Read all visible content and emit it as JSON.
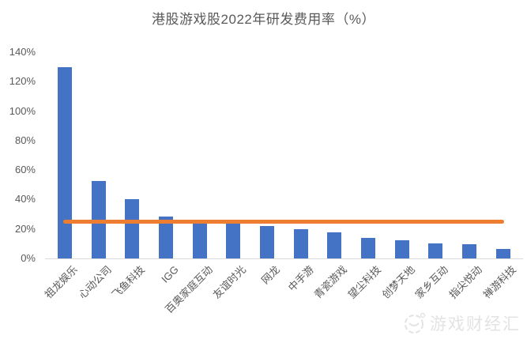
{
  "title": "港股游戏股2022年研发费用率（%）",
  "watermark": {
    "text": "游戏财经汇",
    "icon": "game-logo-icon"
  },
  "colors": {
    "bar": "#4472C4",
    "reference_line": "#ED7D31",
    "axis_text": "#595959",
    "title_text": "#595959",
    "axis_line": "#D9D9D9",
    "watermark": "#E3E3E3",
    "background": "#FFFFFF"
  },
  "chart_data": {
    "type": "bar",
    "title": "港股游戏股2022年研发费用率（%）",
    "xlabel": "",
    "ylabel": "",
    "categories": [
      "祖龙娱乐",
      "心动公司",
      "飞鱼科技",
      "IGG",
      "百奥家庭互动",
      "友谊时光",
      "网龙",
      "中手游",
      "青瓷游戏",
      "望尘科技",
      "创梦天地",
      "家乡互动",
      "指尖悦动",
      "禅游科技"
    ],
    "values": [
      129.8,
      52.4,
      40.1,
      28.6,
      23.8,
      23.4,
      22.0,
      19.7,
      17.5,
      13.9,
      12.2,
      10.4,
      9.4,
      6.6
    ],
    "series_name": "研发费用率",
    "reference_line_value": 24.9,
    "ylim": [
      0,
      140
    ],
    "ytick_step": 20,
    "ytick_labels": [
      "0%",
      "20%",
      "40%",
      "60%",
      "80%",
      "100%",
      "120%",
      "140%"
    ],
    "grid": false,
    "legend_position": "none",
    "xtick_rotation_deg": 45
  }
}
